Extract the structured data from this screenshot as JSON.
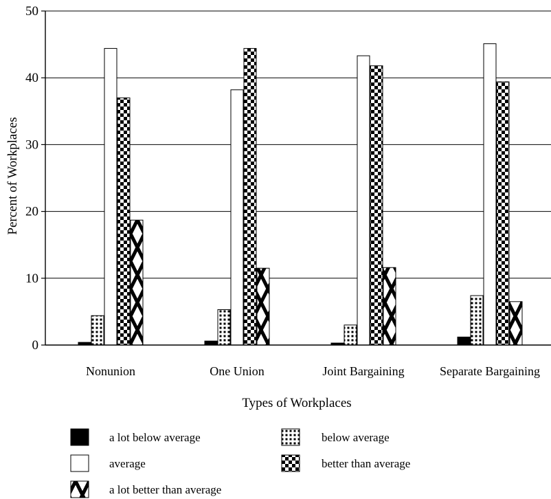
{
  "chart_data": {
    "type": "bar",
    "title": "",
    "xlabel": "Types of Workplaces",
    "ylabel": "Percent of Workplaces",
    "ylim": [
      0,
      50
    ],
    "yticks": [
      0,
      10,
      20,
      30,
      40,
      50
    ],
    "grid": true,
    "legend_position": "bottom",
    "categories": [
      "Nonunion",
      "One Union",
      "Joint Bargaining",
      "Separate Bargaining"
    ],
    "series": [
      {
        "name": "a lot below average",
        "pattern": "solid",
        "values": [
          0.4,
          0.6,
          0.3,
          1.2
        ]
      },
      {
        "name": "below average",
        "pattern": "grid",
        "values": [
          4.4,
          5.3,
          3.0,
          7.4
        ]
      },
      {
        "name": "average",
        "pattern": "empty",
        "values": [
          44.4,
          38.2,
          43.3,
          45.1
        ]
      },
      {
        "name": "better than average",
        "pattern": "checker",
        "values": [
          37.0,
          44.4,
          41.8,
          39.4
        ]
      },
      {
        "name": "a lot better than average",
        "pattern": "diamond",
        "values": [
          18.7,
          11.5,
          11.6,
          6.5
        ]
      }
    ],
    "colors": {
      "ink": "#000000",
      "fill": "#ffffff"
    }
  }
}
